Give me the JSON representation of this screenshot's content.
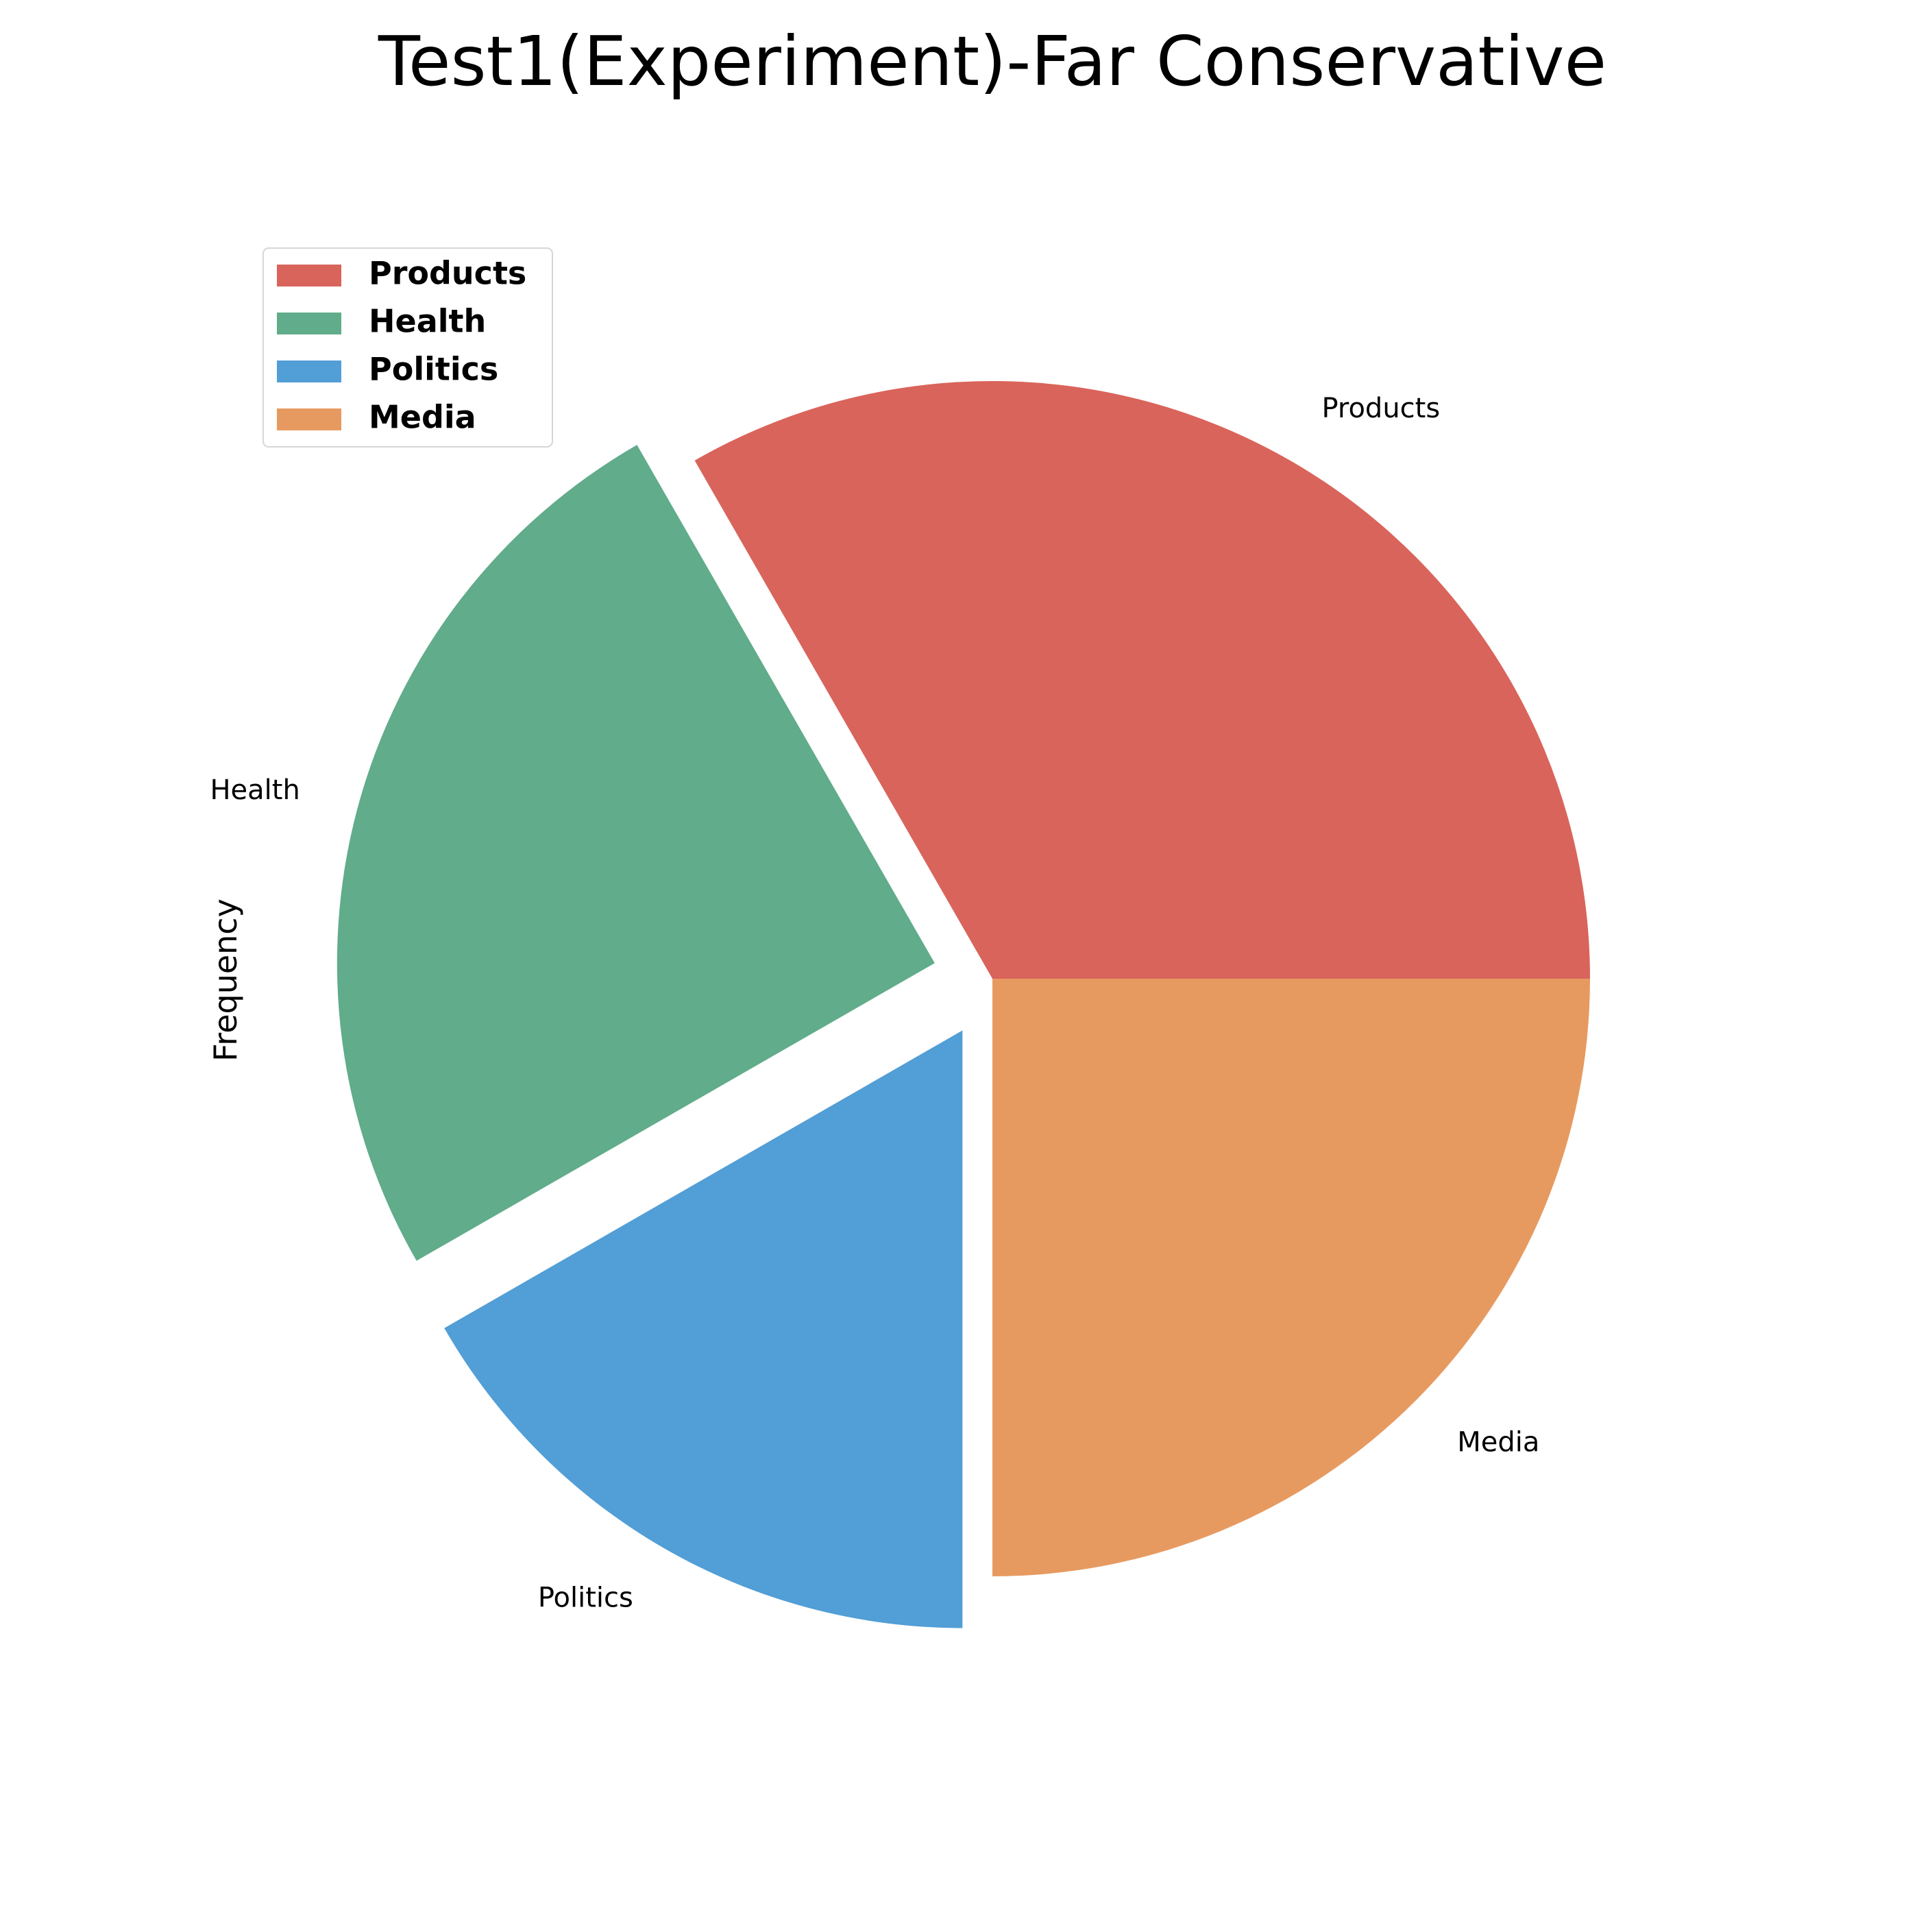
{
  "chart_data": {
    "type": "pie",
    "title": "Test1(Experiment)-Far Conservative",
    "ylabel": "Frequency",
    "categories": [
      "Products",
      "Health",
      "Politics",
      "Media"
    ],
    "values": [
      33.3,
      25.0,
      16.7,
      25.0
    ],
    "exploded": [
      false,
      true,
      true,
      false
    ],
    "colors": [
      "#d9645b",
      "#61ac8a",
      "#529ed6",
      "#e79a60"
    ],
    "start_angle_deg": 0,
    "direction": "counterclockwise",
    "legend": {
      "location": "upper-left",
      "entries": [
        "Products",
        "Health",
        "Politics",
        "Media"
      ]
    }
  }
}
